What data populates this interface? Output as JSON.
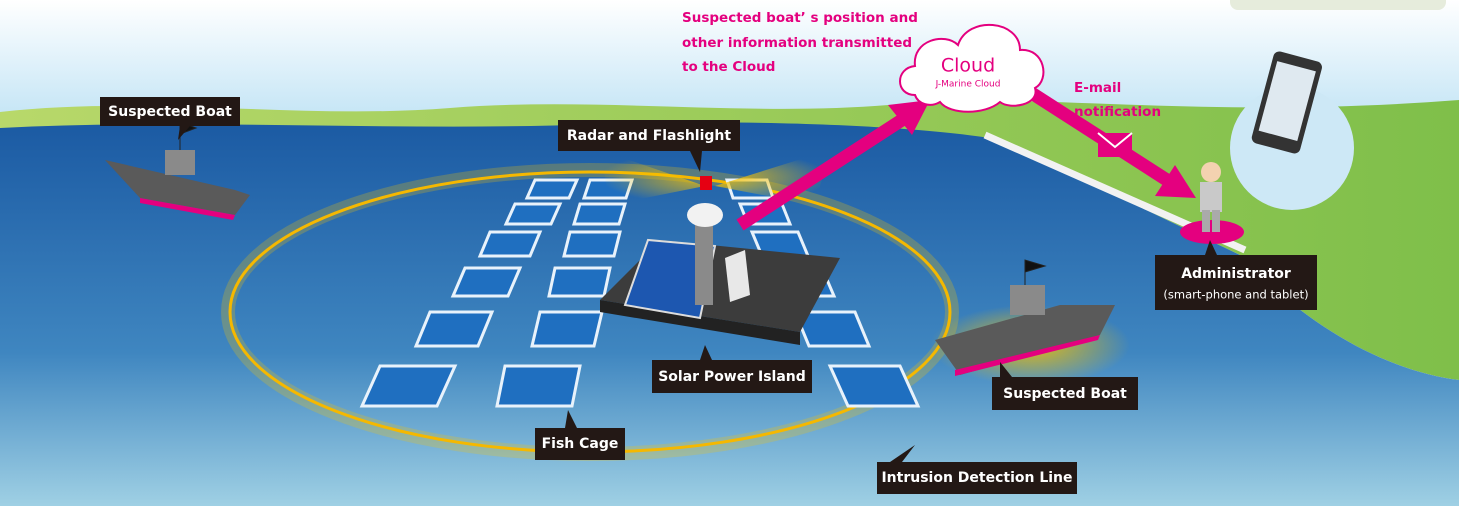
{
  "labels": [
    "Suspected Boat",
    "Radar and Flashlight",
    "Solar Power Island",
    "Fish Cage",
    "Suspected Boat",
    "Intrusion Detection Line"
  ],
  "transmission_note": [
    "Suspected boat’ s position and",
    "other information transmitted",
    "to the Cloud"
  ],
  "cloud": {
    "title": "Cloud",
    "subtitle": "J-Marine Cloud"
  },
  "email_note": [
    "E-mail",
    "notification"
  ],
  "administrator": {
    "title": "Administrator",
    "subtitle": "(smart-phone and tablet)"
  }
}
